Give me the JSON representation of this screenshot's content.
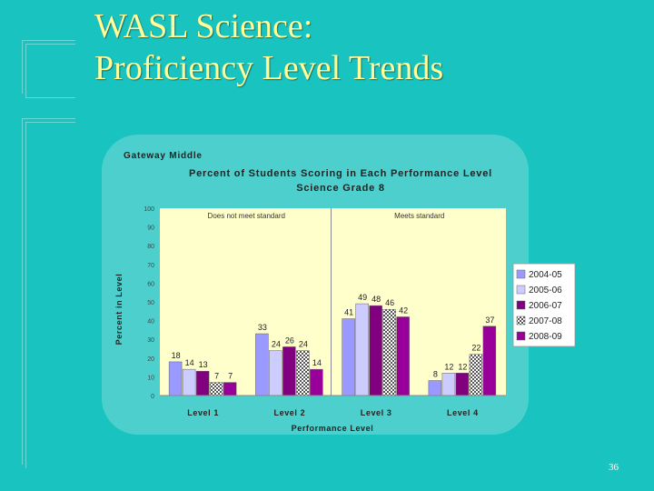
{
  "slide": {
    "title_line1": "WASL Science:",
    "title_line2": "Proficiency Level Trends",
    "page_number": "36"
  },
  "colors": {
    "background": "#19c4c0",
    "plot_area": "#ffffcc",
    "title_text": "#ffff99"
  },
  "chart_data": {
    "type": "bar",
    "school": "Gateway Middle",
    "title": "Percent of Students Scoring in Each Performance Level",
    "subtitle": "Science Grade 8",
    "xlabel": "Performance Level",
    "ylabel": "Percent in Level",
    "ylim": [
      0,
      100
    ],
    "yticks": [
      0,
      10,
      20,
      30,
      40,
      50,
      60,
      70,
      80,
      90,
      100
    ],
    "grid": false,
    "legend_position": "right",
    "categories": [
      "Level 1",
      "Level 2",
      "Level 3",
      "Level 4"
    ],
    "annotations": [
      {
        "text": "Does not meet standard",
        "region": "Level 1-2"
      },
      {
        "text": "Meets standard",
        "region": "Level 3-4"
      }
    ],
    "series": [
      {
        "name": "2004-05",
        "values": [
          18,
          33,
          41,
          8
        ],
        "labels": [
          "18",
          "33",
          "41",
          "8"
        ],
        "color": "#9999ff",
        "pattern": "solid"
      },
      {
        "name": "2005-06",
        "values": [
          14,
          24,
          49,
          12
        ],
        "labels": [
          "14",
          "24",
          "49",
          "12"
        ],
        "color": "#ccccff",
        "pattern": "solid"
      },
      {
        "name": "2006-07",
        "values": [
          13,
          26,
          48,
          12
        ],
        "labels": [
          "13",
          "26",
          "48",
          "12"
        ],
        "color": "#800080",
        "pattern": "solid"
      },
      {
        "name": "2007-08",
        "values": [
          7,
          24,
          46,
          22
        ],
        "labels": [
          "7",
          "24",
          "46",
          "22"
        ],
        "color": "#cccccc",
        "pattern": "checker"
      },
      {
        "name": "2008-09",
        "values": [
          7,
          14,
          42,
          37
        ],
        "labels": [
          "7",
          "14",
          "42",
          "37"
        ],
        "color": "#990099",
        "pattern": "solid"
      }
    ]
  }
}
